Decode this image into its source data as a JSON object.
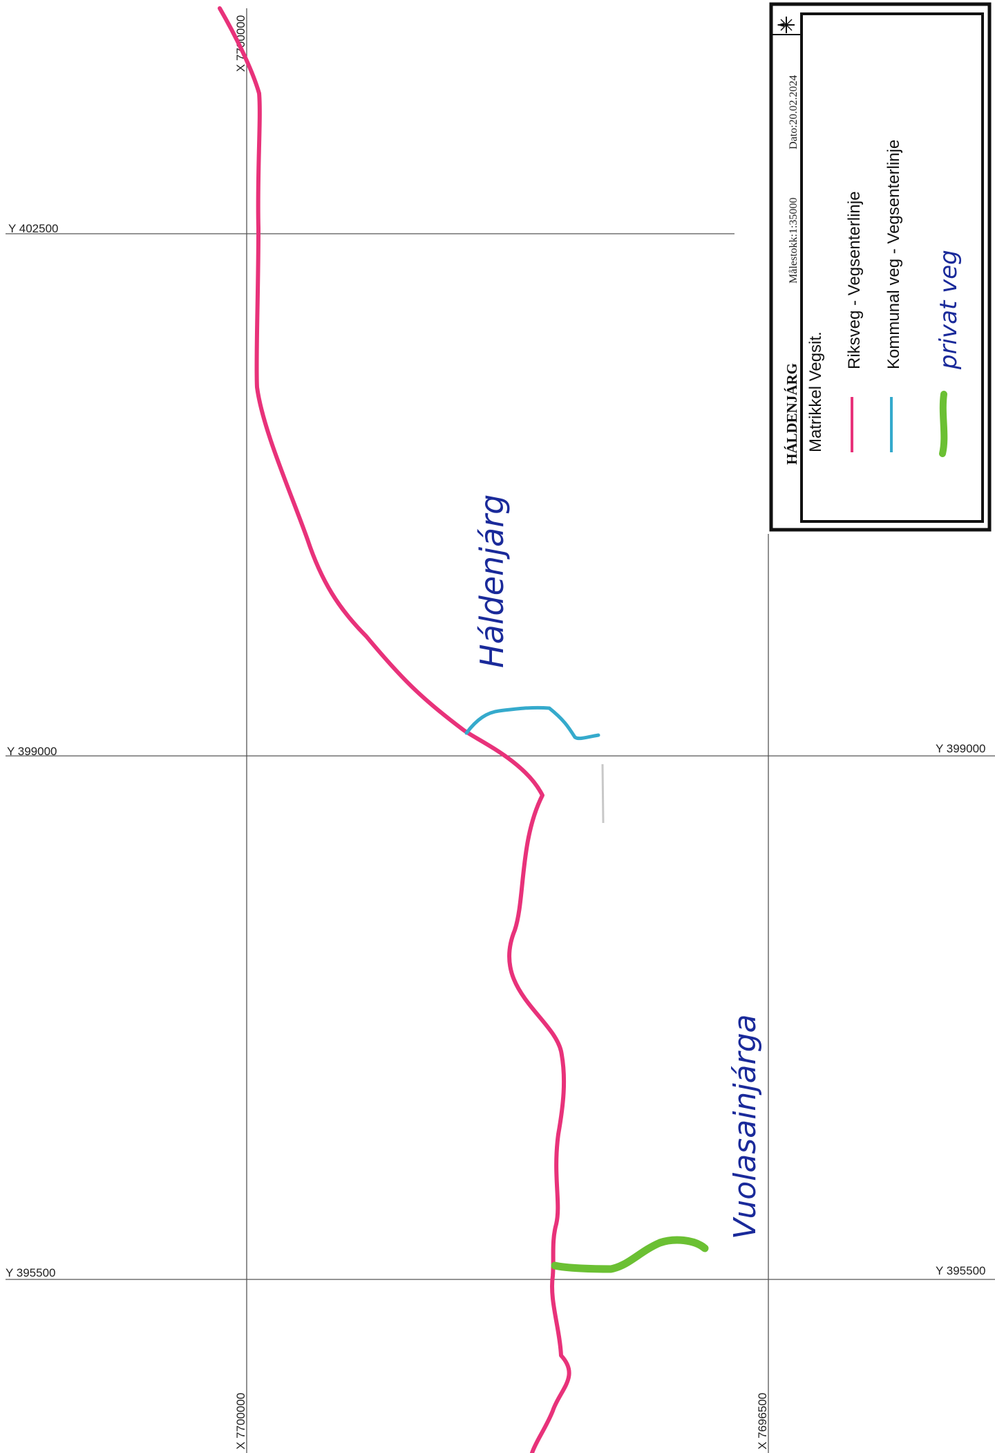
{
  "grid": {
    "y_lines": [
      {
        "label_left": "Y 402500",
        "label_right": ""
      },
      {
        "label_left": "Y 399000",
        "label_right": "Y 399000"
      },
      {
        "label_left": "Y 395500",
        "label_right": "Y 395500"
      }
    ],
    "x_lines": [
      {
        "label_top": "X 7700000",
        "label_bottom": "X 7700000"
      },
      {
        "label_top": "",
        "label_bottom": "X 7696500"
      }
    ]
  },
  "place_names": {
    "haldenjarg": "Háldenjárg",
    "vuolasainjarga": "Vuolasainjárga"
  },
  "legend": {
    "title": "HÁLDENJÁRG",
    "scale": "Målestokk:1:35000",
    "date": "Dato:20.02.2024",
    "subtitle": "Matrikkel Vegsit.",
    "items": [
      {
        "label": "Riksveg - Vegsenterlinje",
        "color": "#e8327a",
        "kind": "printed"
      },
      {
        "label": "Kommunal veg - Vegsenterlinje",
        "color": "#35aacc",
        "kind": "printed"
      },
      {
        "label": "privat veg",
        "color": "#6bc033",
        "kind": "handwritten"
      }
    ]
  },
  "colors": {
    "riksveg": "#e8327a",
    "kommunal": "#35aacc",
    "privat": "#6bc033",
    "grid": "#555555",
    "handwriting": "#1a2a9a"
  }
}
